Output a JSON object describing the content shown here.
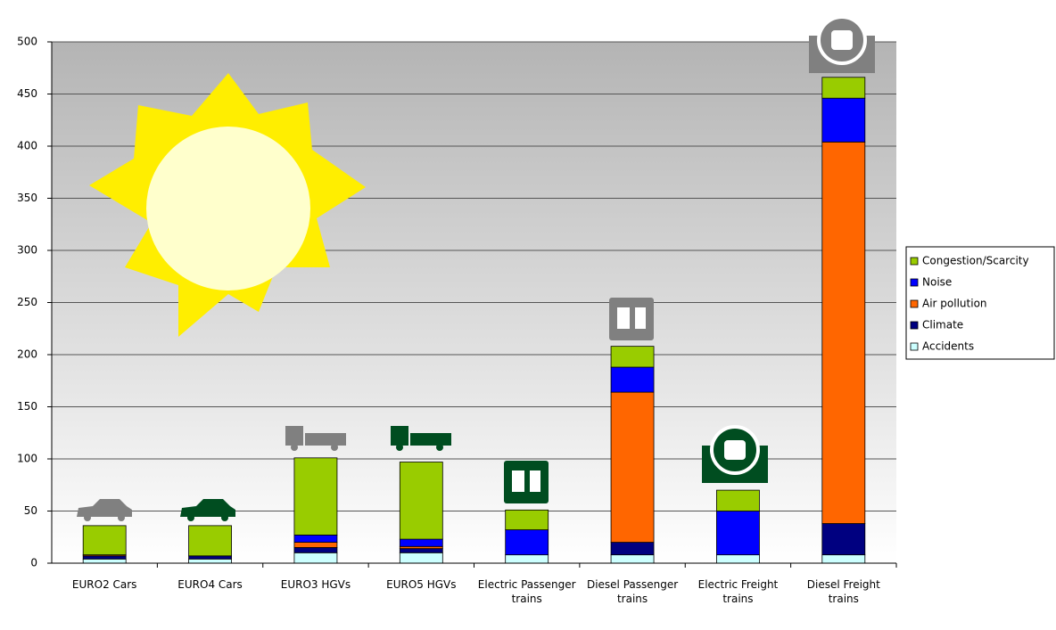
{
  "chart_data": {
    "type": "stacked_bar",
    "categories": [
      "EURO2 Cars",
      "EURO4 Cars",
      "EURO3 HGVs",
      "EURO5 HGVs",
      "Electric Passenger trains",
      "Diesel Passenger trains",
      "Electric Freight trains",
      "Diesel Freight trains"
    ],
    "series": [
      {
        "name": "Accidents",
        "color": "#ccffff",
        "values": [
          4,
          4,
          10,
          10,
          8,
          8,
          8,
          8
        ]
      },
      {
        "name": "Climate",
        "color": "#000080",
        "values": [
          3,
          3,
          5,
          4,
          0,
          12,
          0,
          30
        ]
      },
      {
        "name": "Air pollution",
        "color": "#ff6600",
        "values": [
          1,
          0,
          5,
          2,
          0,
          144,
          0,
          366
        ]
      },
      {
        "name": "Noise",
        "color": "#0000ff",
        "values": [
          0,
          0,
          7,
          7,
          24,
          24,
          42,
          42
        ]
      },
      {
        "name": "Congestion/Scarcity",
        "color": "#99cc00",
        "values": [
          28,
          29,
          74,
          74,
          19,
          20,
          20,
          20
        ]
      }
    ],
    "ylim": [
      0,
      500
    ],
    "yticks": [
      0,
      50,
      100,
      150,
      200,
      250,
      300,
      350,
      400,
      450,
      500
    ],
    "grid": true,
    "legend": "right"
  }
}
